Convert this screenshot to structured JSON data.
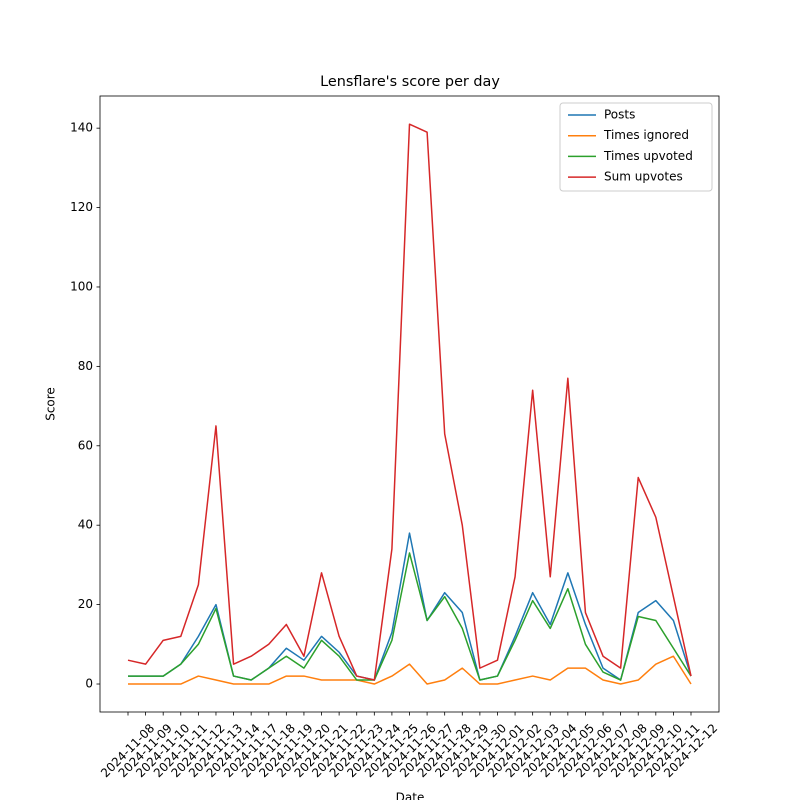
{
  "chart_data": {
    "type": "line",
    "title": "Lensflare's score per day",
    "x_label": "Date",
    "y_label": "Score",
    "categories": [
      "2024-11-08",
      "2024-11-09",
      "2024-11-10",
      "2024-11-11",
      "2024-11-12",
      "2024-11-13",
      "2024-11-14",
      "2024-11-17",
      "2024-11-18",
      "2024-11-19",
      "2024-11-20",
      "2024-11-21",
      "2024-11-22",
      "2024-11-23",
      "2024-11-24",
      "2024-11-25",
      "2024-11-26",
      "2024-11-27",
      "2024-11-28",
      "2024-11-29",
      "2024-11-30",
      "2024-12-01",
      "2024-12-02",
      "2024-12-03",
      "2024-12-04",
      "2024-12-05",
      "2024-12-06",
      "2024-12-07",
      "2024-12-08",
      "2024-12-09",
      "2024-12-10",
      "2024-12-11",
      "2024-12-12"
    ],
    "series": [
      {
        "name": "Posts",
        "color": "#1f77b4",
        "values": [
          2,
          2,
          2,
          5,
          12,
          20,
          2,
          1,
          4,
          9,
          6,
          12,
          8,
          2,
          1,
          13,
          38,
          16,
          23,
          18,
          1,
          2,
          12,
          23,
          15,
          28,
          15,
          4,
          1,
          18,
          21,
          16,
          2
        ]
      },
      {
        "name": "Times ignored",
        "color": "#ff7f0e",
        "values": [
          0,
          0,
          0,
          0,
          2,
          1,
          0,
          0,
          0,
          2,
          2,
          1,
          1,
          1,
          0,
          2,
          5,
          0,
          1,
          4,
          0,
          0,
          1,
          2,
          1,
          4,
          4,
          1,
          0,
          1,
          5,
          7,
          0
        ]
      },
      {
        "name": "Times upvoted",
        "color": "#2ca02c",
        "values": [
          2,
          2,
          2,
          5,
          10,
          19,
          2,
          1,
          4,
          7,
          4,
          11,
          7,
          1,
          1,
          11,
          33,
          16,
          22,
          14,
          1,
          2,
          11,
          21,
          14,
          24,
          10,
          3,
          1,
          17,
          16,
          9,
          2
        ]
      },
      {
        "name": "Sum upvotes",
        "color": "#d62728",
        "values": [
          6,
          5,
          11,
          12,
          25,
          65,
          5,
          7,
          10,
          15,
          7,
          28,
          12,
          2,
          1,
          34,
          141,
          139,
          63,
          40,
          4,
          6,
          27,
          74,
          27,
          77,
          18,
          7,
          4,
          52,
          42,
          22,
          2
        ]
      }
    ],
    "ylim": [
      -7.05,
      148.1
    ],
    "yticks": [
      0,
      20,
      40,
      60,
      80,
      100,
      120,
      140
    ],
    "legend": "upper right"
  }
}
